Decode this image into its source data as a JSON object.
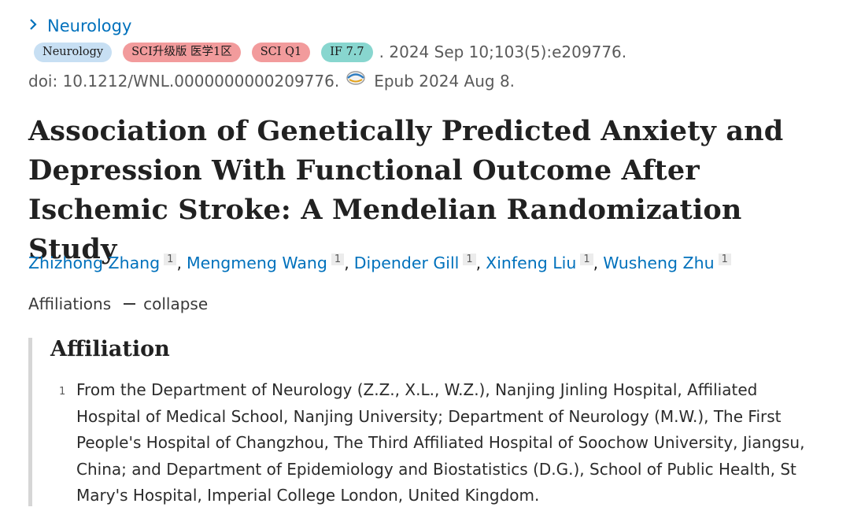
{
  "journal": {
    "chevron": "›",
    "name": "Neurology"
  },
  "tags": {
    "journal": "Neurology",
    "sci_tier": "SCI升级版 医学1区",
    "sci_quartile": "SCI Q1",
    "impact_factor": "IF 7.7"
  },
  "citation": {
    "text": ". 2024 Sep 10;103(5):e209776.",
    "doi": "doi: 10.1212/WNL.0000000000209776.",
    "epub": "Epub 2024 Aug 8.",
    "icon": "open-access-icon"
  },
  "article": {
    "title": "Association of Genetically Predicted Anxiety and Depression With Functional Outcome After Ischemic Stroke: A Mendelian Randomization Study"
  },
  "authors": [
    {
      "name": "Zhizhong Zhang",
      "aff": "1"
    },
    {
      "name": "Mengmeng Wang",
      "aff": "1"
    },
    {
      "name": "Dipender Gill",
      "aff": "1"
    },
    {
      "name": "Xinfeng Liu",
      "aff": "1"
    },
    {
      "name": "Wusheng Zhu",
      "aff": "1"
    }
  ],
  "affiliations_toggle": {
    "label": "Affiliations",
    "action": "collapse"
  },
  "affiliation_section": {
    "heading": "Affiliation",
    "items": [
      {
        "number": "1",
        "text": "From the Department of Neurology (Z.Z., X.L., W.Z.), Nanjing Jinling Hospital, Affiliated Hospital of Medical School, Nanjing University; Department of Neurology (M.W.), The First People's Hospital of Changzhou, The Third Affiliated Hospital of Soochow University, Jiangsu, China; and Department of Epidemiology and Biostatistics (D.G.), School of Public Health, St Mary's Hospital, Imperial College London, United Kingdom."
      }
    ]
  },
  "colors": {
    "link": "#0071bc",
    "tag_journal": "#c7dff3",
    "tag_sci": "#f29b9c",
    "tag_if": "#88d6cf",
    "aff_border": "#d6d6d6"
  }
}
